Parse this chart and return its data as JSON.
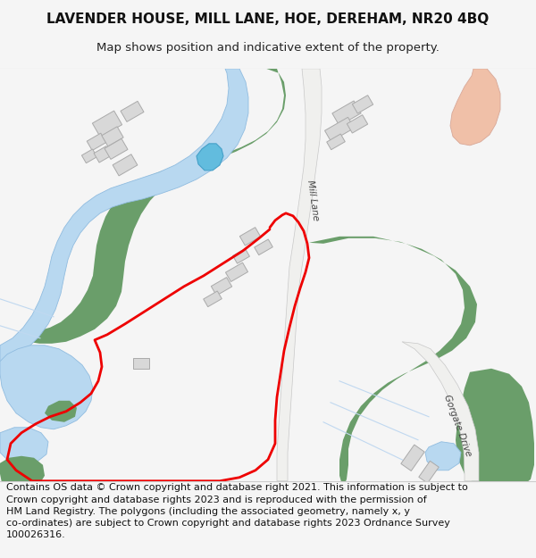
{
  "title": "LAVENDER HOUSE, MILL LANE, HOE, DEREHAM, NR20 4BQ",
  "subtitle": "Map shows position and indicative extent of the property.",
  "footer_lines": [
    "Contains OS data © Crown copyright and database right 2021. This information is subject to Crown copyright and database rights 2023 and is reproduced with the permission of",
    "HM Land Registry. The polygons (including the associated geometry, namely x, y co-ordinates) are subject to Crown copyright and database rights 2023 Ordnance Survey",
    "100026316."
  ],
  "bg_color": "#f5f5f5",
  "map_bg": "#ffffff",
  "title_fontsize": 11,
  "subtitle_fontsize": 9.5,
  "footer_fontsize": 8,
  "river_color": "#b8d8f0",
  "river_edge": "#90bce0",
  "green_color": "#6a9e6a",
  "road_fill": "#f0f0ee",
  "road_edge": "#c8c8c8",
  "road_salmon": "#f0c0a8",
  "road_salmon_edge": "#d8a898",
  "red_line_color": "#ee0000",
  "building_fill": "#d8d8d8",
  "building_edge": "#aaaaaa",
  "label_color": "#444444",
  "field_line_color": "#c0d8f0"
}
